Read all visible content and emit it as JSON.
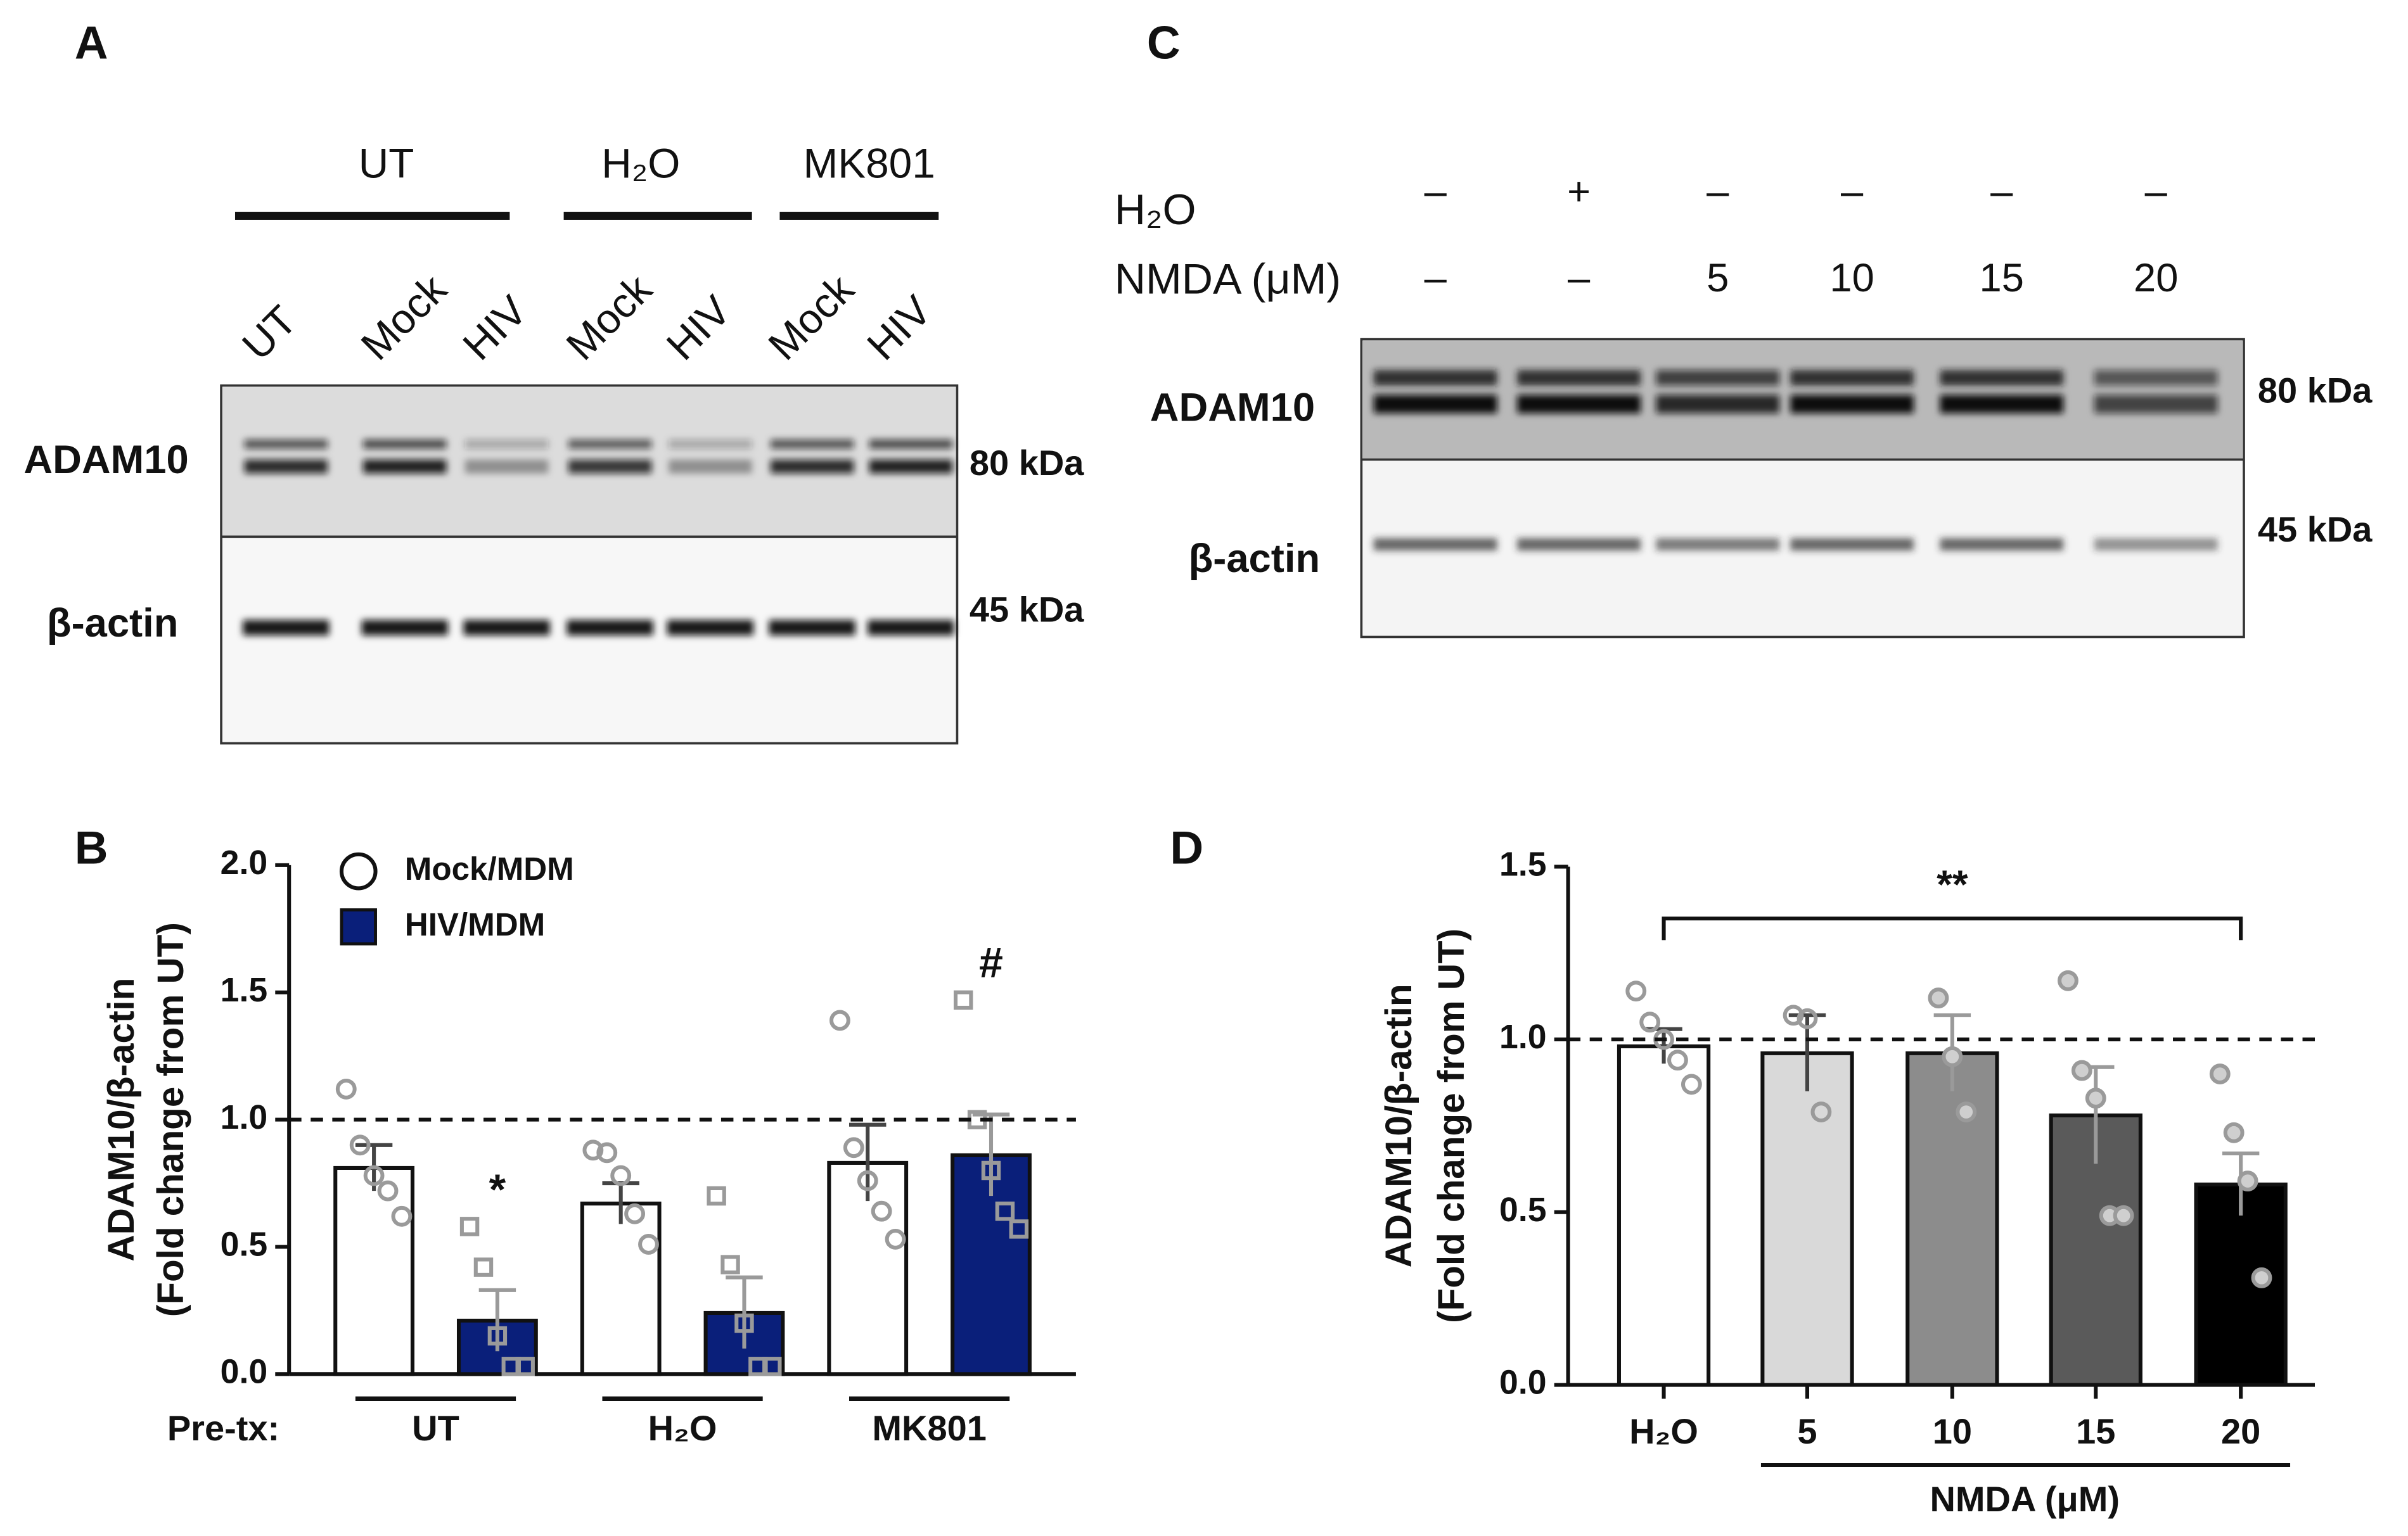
{
  "panels": [
    "A",
    "B",
    "C",
    "D"
  ],
  "blot_a": {
    "groups": [
      "UT",
      "H₂O",
      "MK801"
    ],
    "lanes": [
      "UT",
      "Mock",
      "HIV",
      "Mock",
      "HIV",
      "Mock",
      "HIV"
    ],
    "proteins": [
      "ADAM10",
      "β-actin"
    ],
    "sizes": [
      "80 kDa",
      "45 kDa"
    ]
  },
  "blot_c": {
    "row_labels": [
      "H₂O",
      "NMDA (μM)"
    ],
    "h2o": [
      "–",
      "+",
      "–",
      "–",
      "–",
      "–"
    ],
    "nmda": [
      "–",
      "–",
      "5",
      "10",
      "15",
      "20"
    ],
    "proteins": [
      "ADAM10",
      "β-actin"
    ],
    "sizes": [
      "80 kDa",
      "45 kDa"
    ]
  },
  "chart_data": [
    {
      "type": "bar",
      "ylabel": [
        "ADAM10/β-actin",
        "(Fold change from UT)"
      ],
      "xlabel": "Pre-tx:",
      "categories": [
        "UT",
        "H₂O",
        "MK801"
      ],
      "ylim": [
        0,
        2.0
      ],
      "yticks": [
        {
          "value": 0,
          "label": "0.0"
        },
        {
          "value": 0.5,
          "label": "0.5"
        },
        {
          "value": 1.0,
          "label": "1.0"
        },
        {
          "value": 1.5,
          "label": "1.5"
        },
        {
          "value": 2.0,
          "label": "2.0"
        }
      ],
      "reference_line": 1.0,
      "legend": "top-left",
      "series": [
        {
          "name": "Mock/MDM",
          "color": "#ffffff",
          "marker": "circle",
          "values": [
            0.81,
            0.67,
            0.83
          ],
          "errors": [
            0.09,
            0.08,
            0.15
          ],
          "points": [
            [
              1.12,
              0.9,
              0.78,
              0.72,
              0.62
            ],
            [
              0.88,
              0.87,
              0.78,
              0.63,
              0.51
            ],
            [
              1.39,
              0.89,
              0.76,
              0.64,
              0.53
            ]
          ],
          "annotations": [
            null,
            null,
            null
          ]
        },
        {
          "name": "HIV/MDM",
          "color": "#0a1f7a",
          "marker": "square",
          "values": [
            0.21,
            0.24,
            0.86
          ],
          "errors": [
            0.12,
            0.14,
            0.16
          ],
          "points": [
            [
              0.58,
              0.42,
              0.15,
              0.03,
              0.03
            ],
            [
              0.7,
              0.43,
              0.2,
              0.03,
              0.03
            ],
            [
              1.47,
              1.0,
              0.8,
              0.64,
              0.57
            ]
          ],
          "annotations": [
            "*",
            null,
            "#"
          ]
        }
      ]
    },
    {
      "type": "bar",
      "ylabel": [
        "ADAM10/β-actin",
        "(Fold change from UT)"
      ],
      "xlabel": "NMDA (μM)",
      "categories": [
        "H₂O",
        "5",
        "10",
        "15",
        "20"
      ],
      "colors": [
        "#ffffff",
        "#d9d9d9",
        "#8c8c8c",
        "#5a5a5a",
        "#000000"
      ],
      "values": [
        0.98,
        0.96,
        0.96,
        0.78,
        0.58
      ],
      "errors": [
        0.05,
        0.11,
        0.11,
        0.14,
        0.09
      ],
      "points": [
        [
          1.14,
          1.05,
          1.0,
          0.94,
          0.87
        ],
        [
          1.07,
          1.06,
          0.79
        ],
        [
          1.12,
          0.95,
          0.79
        ],
        [
          1.17,
          0.91,
          0.83,
          0.49,
          0.49
        ],
        [
          0.9,
          0.73,
          0.59,
          0.31
        ]
      ],
      "ylim": [
        0,
        1.5
      ],
      "yticks": [
        {
          "value": 0,
          "label": "0.0"
        },
        {
          "value": 0.5,
          "label": "0.5"
        },
        {
          "value": 1.0,
          "label": "1.0"
        },
        {
          "value": 1.5,
          "label": "1.5"
        }
      ],
      "reference_line": 1.0,
      "bracket": {
        "label": "**",
        "value": 1.35
      }
    }
  ]
}
